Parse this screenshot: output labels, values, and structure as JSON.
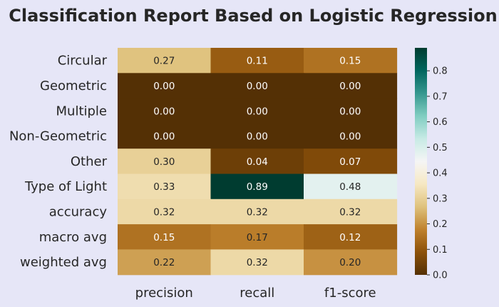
{
  "chart_data": {
    "type": "heatmap",
    "title": "Classification Report Based on Logistic Regression",
    "rows": [
      "Circular",
      "Geometric",
      "Multiple",
      "Non-Geometric",
      "Other",
      "Type of Light",
      "accuracy",
      "macro avg",
      "weighted avg"
    ],
    "columns": [
      "precision",
      "recall",
      "f1-score"
    ],
    "values": [
      [
        0.27,
        0.11,
        0.15
      ],
      [
        0.0,
        0.0,
        0.0
      ],
      [
        0.0,
        0.0,
        0.0
      ],
      [
        0.0,
        0.0,
        0.0
      ],
      [
        0.3,
        0.04,
        0.07
      ],
      [
        0.33,
        0.89,
        0.48
      ],
      [
        0.32,
        0.32,
        0.32
      ],
      [
        0.15,
        0.17,
        0.12
      ],
      [
        0.22,
        0.32,
        0.2
      ]
    ],
    "value_format": "0.00",
    "colormap": "BrBG",
    "vmin": 0.0,
    "vmax": 0.89,
    "colorbar": {
      "ticks": [
        0.0,
        0.1,
        0.2,
        0.3,
        0.4,
        0.5,
        0.6,
        0.7,
        0.8
      ],
      "tick_labels": [
        "0.0",
        "0.1",
        "0.2",
        "0.3",
        "0.4",
        "0.5",
        "0.6",
        "0.7",
        "0.8"
      ],
      "placement": "right"
    },
    "grid": false
  }
}
